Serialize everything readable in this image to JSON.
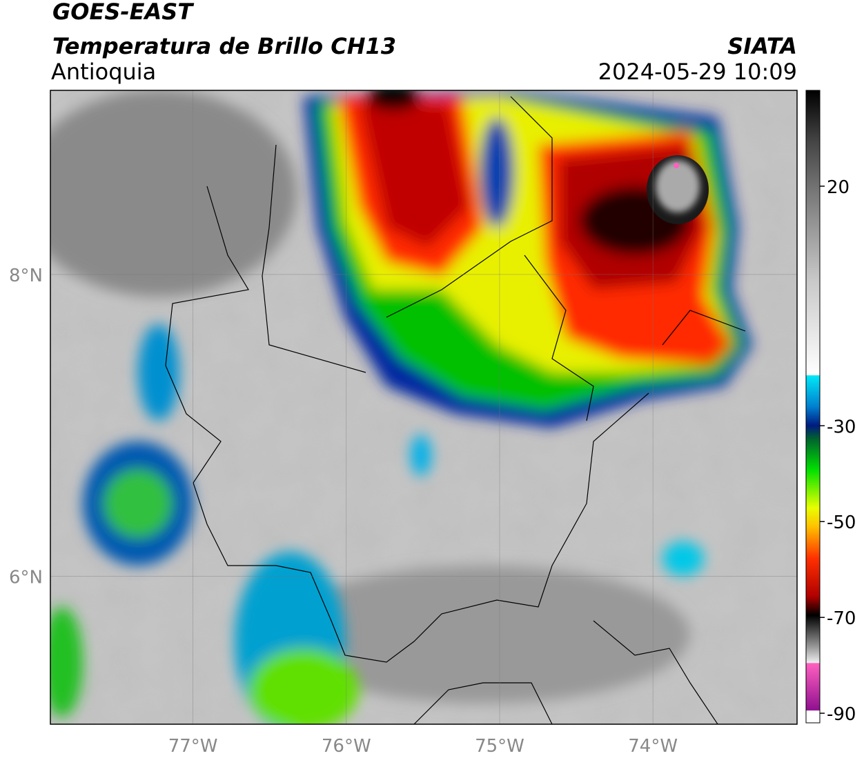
{
  "header": {
    "title": "GOES-EAST",
    "subtitle": "Temperatura de Brillo CH13",
    "region": "Antioquia",
    "source": "SIATA",
    "datetime": "2024-05-29 10:09"
  },
  "map": {
    "xlim": [
      -77.93,
      -73.06
    ],
    "ylim": [
      5.02,
      9.22
    ],
    "xticks": [
      {
        "value": -77,
        "label": "77°W"
      },
      {
        "value": -76,
        "label": "76°W"
      },
      {
        "value": -75,
        "label": "75°W"
      },
      {
        "value": -74,
        "label": "74°W"
      }
    ],
    "yticks": [
      {
        "value": 6,
        "label": "6°N"
      },
      {
        "value": 8,
        "label": "8°N"
      }
    ],
    "grid": true
  },
  "colorbar": {
    "lim": [
      -92,
      40
    ],
    "ticks": [
      20,
      -30,
      -50,
      -70,
      -90
    ]
  }
}
